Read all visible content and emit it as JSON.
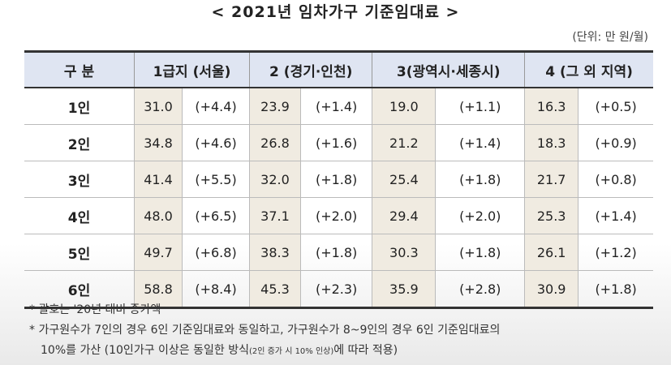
{
  "title": "< 2021년 임차가구 기준임대료 >",
  "unit": "(단위: 만 원/월)",
  "table": {
    "header": [
      "구 분",
      "1급지 (서울)",
      "2 (경기·인천)",
      "3(광역시·세종시)",
      "4 (그 외 지역)"
    ],
    "rows": [
      {
        "label": "1인",
        "cells": [
          "31.0",
          "(+4.4)",
          "23.9",
          "(+1.4)",
          "19.0",
          "(+1.1)",
          "16.3",
          "(+0.5)"
        ]
      },
      {
        "label": "2인",
        "cells": [
          "34.8",
          "(+4.6)",
          "26.8",
          "(+1.6)",
          "21.2",
          "(+1.4)",
          "18.3",
          "(+0.9)"
        ]
      },
      {
        "label": "3인",
        "cells": [
          "41.4",
          "(+5.5)",
          "32.0",
          "(+1.8)",
          "25.4",
          "(+1.8)",
          "21.7",
          "(+0.8)"
        ]
      },
      {
        "label": "4인",
        "cells": [
          "48.0",
          "(+6.5)",
          "37.1",
          "(+2.0)",
          "29.4",
          "(+2.0)",
          "25.3",
          "(+1.4)"
        ]
      },
      {
        "label": "5인",
        "cells": [
          "49.7",
          "(+6.8)",
          "38.3",
          "(+1.8)",
          "30.3",
          "(+1.8)",
          "26.1",
          "(+1.2)"
        ]
      },
      {
        "label": "6인",
        "cells": [
          "58.8",
          "(+8.4)",
          "45.3",
          "(+2.3)",
          "35.9",
          "(+2.8)",
          "30.9",
          "(+1.8)"
        ]
      }
    ]
  },
  "notes": [
    {
      "text": "* 괄호는 '20년 대비 증가액"
    },
    {
      "text": "* 가구원수가 7인의 경우 6인 기준임대료와 동일하고, 가구원수가 8~9인의 경우 6인 기준임대료의"
    },
    {
      "text": "10%를 가산 (10인가구 이상은 동일한 방식",
      "small": "(2인 증가 시 10% 인상)",
      "tail": "에 따라 적용)"
    }
  ]
}
